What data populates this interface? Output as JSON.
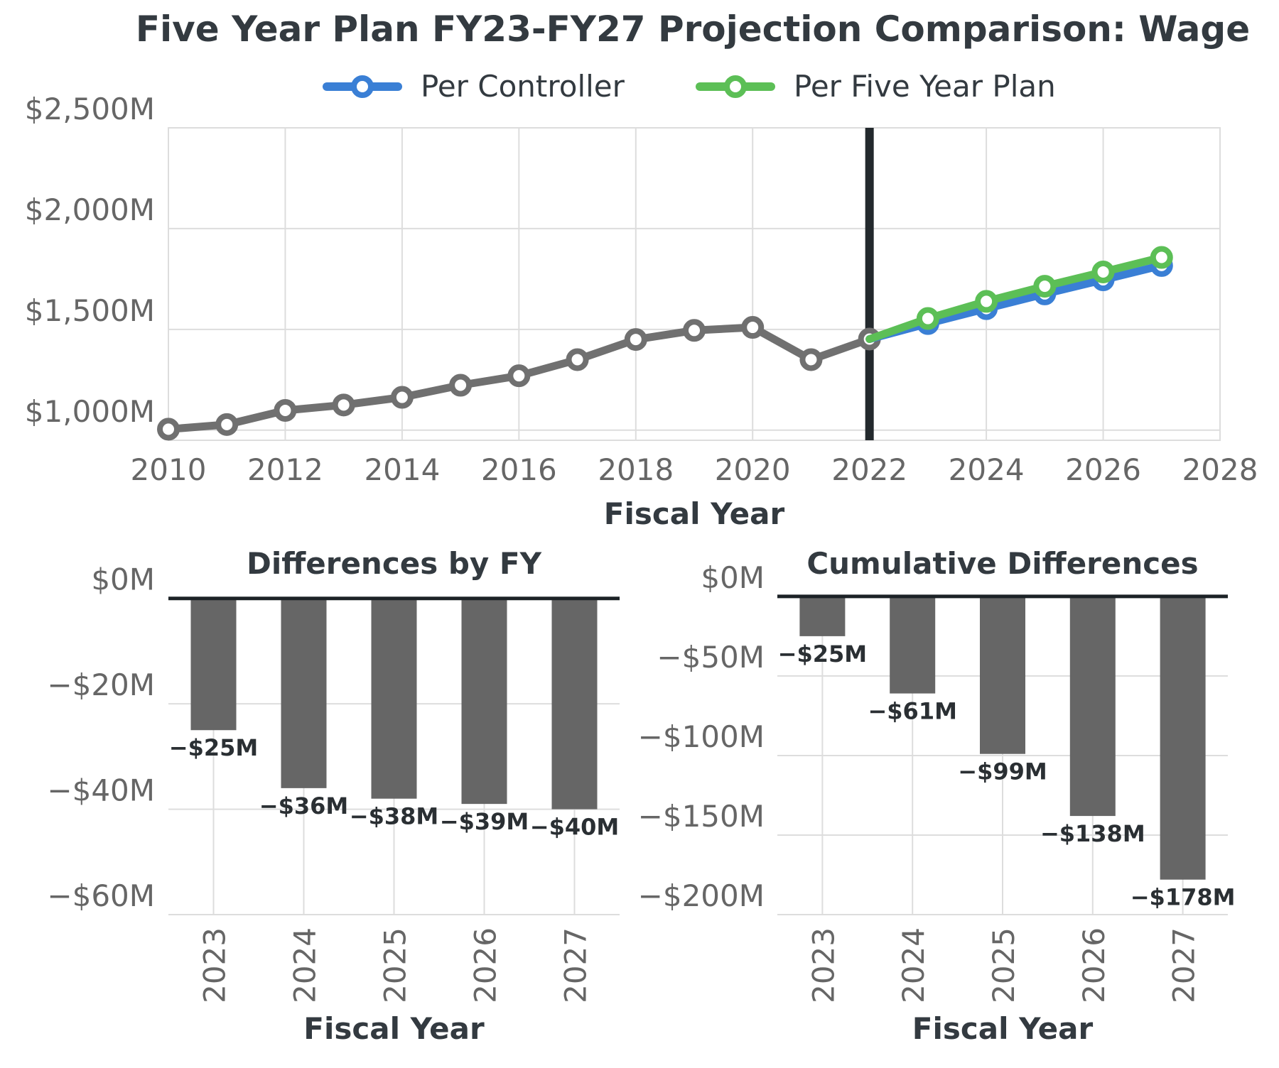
{
  "title": "Five Year Plan FY23-FY27 Projection Comparison: Wage",
  "colors": {
    "historical": "#707070",
    "controller": "#3a7fd5",
    "plan": "#5cbf56",
    "bar": "#666666",
    "divider": "#23292d"
  },
  "chart_data": [
    {
      "type": "line",
      "title": "",
      "xlabel": "Fiscal Year",
      "ylabel": "",
      "xlim": [
        2010,
        2028
      ],
      "ylim": [
        950,
        2500
      ],
      "x_ticks": [
        "2010",
        "2012",
        "2014",
        "2016",
        "2018",
        "2020",
        "2022",
        "2024",
        "2026",
        "2028"
      ],
      "y_ticks": [
        "$1,000M",
        "$1,500M",
        "$2,000M",
        "$2,500M"
      ],
      "y_tick_values": [
        1000,
        1500,
        2000,
        2500
      ],
      "legend": {
        "position": "top-center"
      },
      "projection_start": 2022,
      "series": [
        {
          "key": "historical",
          "x": [
            2010,
            2011,
            2012,
            2013,
            2014,
            2015,
            2016,
            2017,
            2018,
            2019,
            2020,
            2021,
            2022
          ],
          "values": [
            1005,
            1028,
            1098,
            1125,
            1163,
            1223,
            1270,
            1350,
            1450,
            1495,
            1510,
            1350,
            1452
          ]
        },
        {
          "key": "controller",
          "name": "Per Controller",
          "x": [
            2022,
            2023,
            2024,
            2025,
            2026,
            2027
          ],
          "values": [
            1452,
            1529,
            1603,
            1676,
            1746,
            1817
          ]
        },
        {
          "key": "plan",
          "name": "Per Five Year Plan",
          "x": [
            2022,
            2023,
            2024,
            2025,
            2026,
            2027
          ],
          "values": [
            1452,
            1554,
            1639,
            1714,
            1785,
            1857
          ]
        }
      ]
    },
    {
      "type": "bar",
      "title": "Differences by FY",
      "xlabel": "Fiscal Year",
      "ylabel": "",
      "categories": [
        "2023",
        "2024",
        "2025",
        "2026",
        "2027"
      ],
      "values": [
        -25,
        -36,
        -38,
        -39,
        -40
      ],
      "labels": [
        "−$25M",
        "−$36M",
        "−$38M",
        "−$39M",
        "−$40M"
      ],
      "ylim": [
        -60,
        4
      ],
      "y_ticks": [
        "$0M",
        "−$20M",
        "−$40M",
        "−$60M"
      ],
      "y_tick_values": [
        0,
        -20,
        -40,
        -60
      ]
    },
    {
      "type": "bar",
      "title": "Cumulative Differences",
      "xlabel": "Fiscal Year",
      "ylabel": "",
      "categories": [
        "2023",
        "2024",
        "2025",
        "2026",
        "2027"
      ],
      "values": [
        -25,
        -61,
        -99,
        -138,
        -178
      ],
      "labels": [
        "−$25M",
        "−$61M",
        "−$99M",
        "−$138M",
        "−$178M"
      ],
      "ylim": [
        -200,
        12
      ],
      "y_ticks": [
        "$0M",
        "−$50M",
        "−$100M",
        "−$150M",
        "−$200M"
      ],
      "y_tick_values": [
        0,
        -50,
        -100,
        -150,
        -200
      ]
    }
  ]
}
